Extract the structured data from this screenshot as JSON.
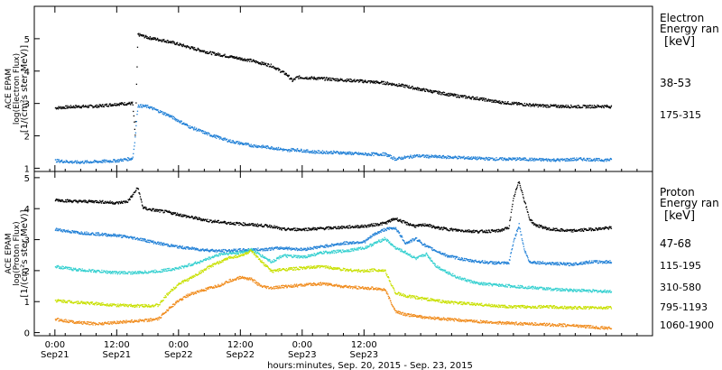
{
  "chart_data": [
    {
      "type": "scatter",
      "panel": "electron",
      "ylabel": [
        "ACE EPAM",
        "log(Electron Flux)",
        "[1/(cm²s ster MeV)]"
      ],
      "ylim": [
        0.9,
        6.0
      ],
      "yticks": [
        1,
        2,
        3,
        4,
        5
      ],
      "legend_title": [
        "Electron",
        "Energy ran"
      ],
      "legend_unit": "[keV]",
      "series": [
        {
          "name": "38-53",
          "color": "#000000",
          "values": [
            [
              0,
              2.88
            ],
            [
              4,
              2.92
            ],
            [
              8,
              2.93
            ],
            [
              12,
              3.0
            ],
            [
              15,
              3.02
            ],
            [
              15.5,
              2.0
            ],
            [
              16,
              5.15
            ],
            [
              18,
              5.05
            ],
            [
              22,
              4.93
            ],
            [
              26,
              4.75
            ],
            [
              30,
              4.58
            ],
            [
              34,
              4.46
            ],
            [
              38,
              4.34
            ],
            [
              42,
              4.18
            ],
            [
              45,
              3.9
            ],
            [
              46,
              3.72
            ],
            [
              47,
              3.83
            ],
            [
              50,
              3.8
            ],
            [
              55,
              3.75
            ],
            [
              60,
              3.7
            ],
            [
              64,
              3.65
            ],
            [
              68,
              3.55
            ],
            [
              70,
              3.48
            ],
            [
              74,
              3.36
            ],
            [
              78,
              3.25
            ],
            [
              82,
              3.17
            ],
            [
              86,
              3.06
            ],
            [
              90,
              3.0
            ],
            [
              94,
              2.95
            ],
            [
              98,
              2.93
            ],
            [
              102,
              2.92
            ],
            [
              106,
              2.93
            ],
            [
              108,
              2.92
            ]
          ]
        },
        {
          "name": "175-315",
          "color": "#1f7fd6",
          "values": [
            [
              0,
              1.25
            ],
            [
              4,
              1.2
            ],
            [
              8,
              1.22
            ],
            [
              12,
              1.25
            ],
            [
              15,
              1.32
            ],
            [
              15.5,
              2.0
            ],
            [
              16,
              2.95
            ],
            [
              18,
              2.92
            ],
            [
              22,
              2.65
            ],
            [
              26,
              2.3
            ],
            [
              30,
              2.05
            ],
            [
              34,
              1.85
            ],
            [
              38,
              1.72
            ],
            [
              42,
              1.65
            ],
            [
              44,
              1.6
            ],
            [
              45,
              1.55
            ],
            [
              46,
              1.6
            ],
            [
              50,
              1.52
            ],
            [
              55,
              1.5
            ],
            [
              60,
              1.45
            ],
            [
              64,
              1.45
            ],
            [
              66,
              1.3
            ],
            [
              68,
              1.35
            ],
            [
              70,
              1.4
            ],
            [
              74,
              1.37
            ],
            [
              78,
              1.35
            ],
            [
              82,
              1.32
            ],
            [
              86,
              1.3
            ],
            [
              90,
              1.3
            ],
            [
              94,
              1.28
            ],
            [
              98,
              1.27
            ],
            [
              102,
              1.3
            ],
            [
              106,
              1.27
            ],
            [
              108,
              1.28
            ]
          ]
        }
      ]
    },
    {
      "type": "scatter",
      "panel": "proton",
      "ylabel": [
        "ACE EPAM",
        "log(Proton Flux)",
        "[1/(cm²s ster MeV)]"
      ],
      "ylim": [
        -0.1,
        5.2
      ],
      "yticks": [
        0,
        1,
        2,
        3,
        4,
        5
      ],
      "xlim": [
        -4,
        116
      ],
      "xticks": [
        {
          "x": 0,
          "label": [
            "0:00",
            "Sep21"
          ]
        },
        {
          "x": 12,
          "label": [
            "12:00",
            "Sep21"
          ]
        },
        {
          "x": 24,
          "label": [
            "0:00",
            "Sep22"
          ]
        },
        {
          "x": 36,
          "label": [
            "12:00",
            "Sep22"
          ]
        },
        {
          "x": 48,
          "label": [
            "0:00",
            "Sep23"
          ]
        },
        {
          "x": 60,
          "label": [
            "12:00",
            "Sep23"
          ]
        }
      ],
      "xlabel": "hours:minutes, Sep. 20, 2015 - Sep. 23, 2015",
      "legend_title": [
        "Proton",
        "Energy ran"
      ],
      "legend_unit": "[keV]",
      "series": [
        {
          "name": "47-68",
          "color": "#000000",
          "values": [
            [
              0,
              4.3
            ],
            [
              4,
              4.25
            ],
            [
              8,
              4.25
            ],
            [
              12,
              4.2
            ],
            [
              14,
              4.25
            ],
            [
              15,
              4.45
            ],
            [
              16,
              4.7
            ],
            [
              17,
              4.05
            ],
            [
              18,
              4.0
            ],
            [
              22,
              3.9
            ],
            [
              26,
              3.75
            ],
            [
              30,
              3.62
            ],
            [
              34,
              3.55
            ],
            [
              38,
              3.5
            ],
            [
              42,
              3.45
            ],
            [
              44,
              3.35
            ],
            [
              48,
              3.35
            ],
            [
              52,
              3.38
            ],
            [
              56,
              3.42
            ],
            [
              60,
              3.45
            ],
            [
              64,
              3.55
            ],
            [
              66,
              3.7
            ],
            [
              68,
              3.55
            ],
            [
              70,
              3.45
            ],
            [
              72,
              3.5
            ],
            [
              74,
              3.4
            ],
            [
              78,
              3.32
            ],
            [
              82,
              3.28
            ],
            [
              86,
              3.3
            ],
            [
              88,
              3.4
            ],
            [
              89,
              4.4
            ],
            [
              90,
              4.9
            ],
            [
              91,
              4.3
            ],
            [
              92,
              3.7
            ],
            [
              93,
              3.5
            ],
            [
              96,
              3.35
            ],
            [
              100,
              3.3
            ],
            [
              104,
              3.35
            ],
            [
              108,
              3.4
            ]
          ]
        },
        {
          "name": "115-195",
          "color": "#1f7fd6",
          "values": [
            [
              0,
              3.35
            ],
            [
              4,
              3.25
            ],
            [
              8,
              3.2
            ],
            [
              12,
              3.15
            ],
            [
              16,
              3.05
            ],
            [
              20,
              2.9
            ],
            [
              24,
              2.78
            ],
            [
              28,
              2.7
            ],
            [
              32,
              2.65
            ],
            [
              36,
              2.68
            ],
            [
              40,
              2.7
            ],
            [
              44,
              2.75
            ],
            [
              48,
              2.7
            ],
            [
              52,
              2.8
            ],
            [
              56,
              2.9
            ],
            [
              60,
              2.95
            ],
            [
              62,
              3.2
            ],
            [
              64,
              3.35
            ],
            [
              66,
              3.4
            ],
            [
              68,
              2.9
            ],
            [
              70,
              3.05
            ],
            [
              72,
              2.8
            ],
            [
              74,
              2.65
            ],
            [
              76,
              2.5
            ],
            [
              80,
              2.35
            ],
            [
              84,
              2.28
            ],
            [
              88,
              2.25
            ],
            [
              89,
              3.0
            ],
            [
              90,
              3.5
            ],
            [
              91,
              2.7
            ],
            [
              92,
              2.3
            ],
            [
              96,
              2.25
            ],
            [
              100,
              2.22
            ],
            [
              104,
              2.3
            ],
            [
              108,
              2.3
            ]
          ]
        },
        {
          "name": "310-580",
          "color": "#35d0d0",
          "values": [
            [
              0,
              2.15
            ],
            [
              4,
              2.05
            ],
            [
              8,
              2.0
            ],
            [
              12,
              1.95
            ],
            [
              16,
              1.95
            ],
            [
              20,
              2.0
            ],
            [
              24,
              2.1
            ],
            [
              28,
              2.3
            ],
            [
              32,
              2.55
            ],
            [
              36,
              2.6
            ],
            [
              38,
              2.7
            ],
            [
              40,
              2.5
            ],
            [
              42,
              2.3
            ],
            [
              44,
              2.5
            ],
            [
              48,
              2.45
            ],
            [
              52,
              2.6
            ],
            [
              56,
              2.65
            ],
            [
              60,
              2.75
            ],
            [
              62,
              2.9
            ],
            [
              64,
              3.05
            ],
            [
              66,
              2.75
            ],
            [
              68,
              2.6
            ],
            [
              70,
              2.4
            ],
            [
              72,
              2.55
            ],
            [
              74,
              2.15
            ],
            [
              78,
              1.8
            ],
            [
              82,
              1.6
            ],
            [
              86,
              1.55
            ],
            [
              90,
              1.5
            ],
            [
              94,
              1.45
            ],
            [
              98,
              1.4
            ],
            [
              102,
              1.38
            ],
            [
              106,
              1.35
            ],
            [
              108,
              1.35
            ]
          ]
        },
        {
          "name": "795-1193",
          "color": "#c8e000",
          "values": [
            [
              0,
              1.05
            ],
            [
              4,
              1.0
            ],
            [
              8,
              0.95
            ],
            [
              12,
              0.9
            ],
            [
              16,
              0.88
            ],
            [
              20,
              0.9
            ],
            [
              22,
              1.3
            ],
            [
              24,
              1.6
            ],
            [
              26,
              1.75
            ],
            [
              28,
              1.95
            ],
            [
              30,
              2.15
            ],
            [
              32,
              2.3
            ],
            [
              34,
              2.45
            ],
            [
              36,
              2.5
            ],
            [
              38,
              2.65
            ],
            [
              40,
              2.3
            ],
            [
              42,
              2.0
            ],
            [
              44,
              2.05
            ],
            [
              48,
              2.1
            ],
            [
              52,
              2.15
            ],
            [
              56,
              2.05
            ],
            [
              60,
              2.0
            ],
            [
              62,
              2.05
            ],
            [
              64,
              2.0
            ],
            [
              66,
              1.3
            ],
            [
              68,
              1.2
            ],
            [
              72,
              1.1
            ],
            [
              76,
              1.0
            ],
            [
              80,
              0.95
            ],
            [
              84,
              0.9
            ],
            [
              88,
              0.85
            ],
            [
              92,
              0.85
            ],
            [
              96,
              0.85
            ],
            [
              100,
              0.82
            ],
            [
              104,
              0.82
            ],
            [
              108,
              0.82
            ]
          ]
        },
        {
          "name": "1060-1900",
          "color": "#f08a1a",
          "values": [
            [
              0,
              0.45
            ],
            [
              4,
              0.35
            ],
            [
              8,
              0.3
            ],
            [
              12,
              0.35
            ],
            [
              16,
              0.4
            ],
            [
              20,
              0.45
            ],
            [
              22,
              0.8
            ],
            [
              24,
              1.05
            ],
            [
              26,
              1.25
            ],
            [
              28,
              1.35
            ],
            [
              30,
              1.45
            ],
            [
              32,
              1.55
            ],
            [
              34,
              1.7
            ],
            [
              36,
              1.8
            ],
            [
              38,
              1.75
            ],
            [
              40,
              1.5
            ],
            [
              42,
              1.45
            ],
            [
              44,
              1.5
            ],
            [
              48,
              1.55
            ],
            [
              52,
              1.6
            ],
            [
              56,
              1.5
            ],
            [
              60,
              1.45
            ],
            [
              62,
              1.45
            ],
            [
              64,
              1.4
            ],
            [
              66,
              0.7
            ],
            [
              68,
              0.6
            ],
            [
              72,
              0.5
            ],
            [
              76,
              0.45
            ],
            [
              80,
              0.4
            ],
            [
              84,
              0.35
            ],
            [
              88,
              0.32
            ],
            [
              92,
              0.3
            ],
            [
              96,
              0.27
            ],
            [
              100,
              0.25
            ],
            [
              104,
              0.2
            ],
            [
              108,
              0.15
            ]
          ]
        }
      ]
    }
  ]
}
